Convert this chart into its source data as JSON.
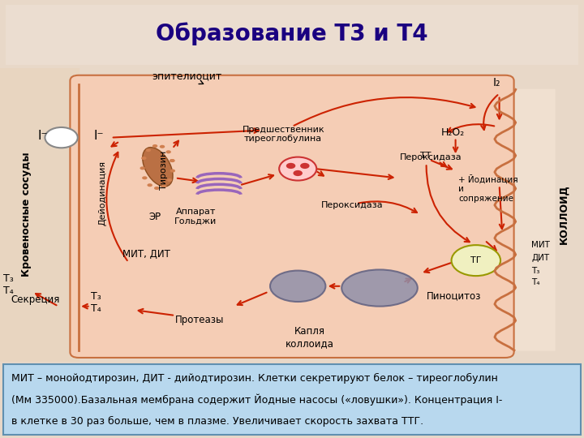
{
  "title": "Образование Т3 и Т4",
  "title_color": "#1a0080",
  "title_bg_color": "#f5a020",
  "title_fontsize": 20,
  "title_fontweight": "bold",
  "main_bg_color": "#e8d8c8",
  "cell_fill_color": "#f5cdb5",
  "cell_edge_color": "#c87040",
  "footer_bg_color": "#b8d8ee",
  "footer_border_color": "#6090b0",
  "footer_text_line1": "МИТ – монойодтирозин, ДИТ - дийодтирозин. Клетки секретируют белок – тиреоглобулин",
  "footer_text_line2": "(Мм 335000).Базальная мембрана содержит Йодные насосы («ловушки»). Концентрация I-",
  "footer_text_line3": "в клетке в 30 раз больше, чем в плазме. Увеличивает скорость захвата ТТГ.",
  "footer_bold_word": "335000",
  "footer_bold_word2": "30",
  "footer_fontsize": 9,
  "left_label": "Кровеносные сосуды",
  "right_label": "КОЛЛОИД",
  "arrow_color": "#cc2200"
}
